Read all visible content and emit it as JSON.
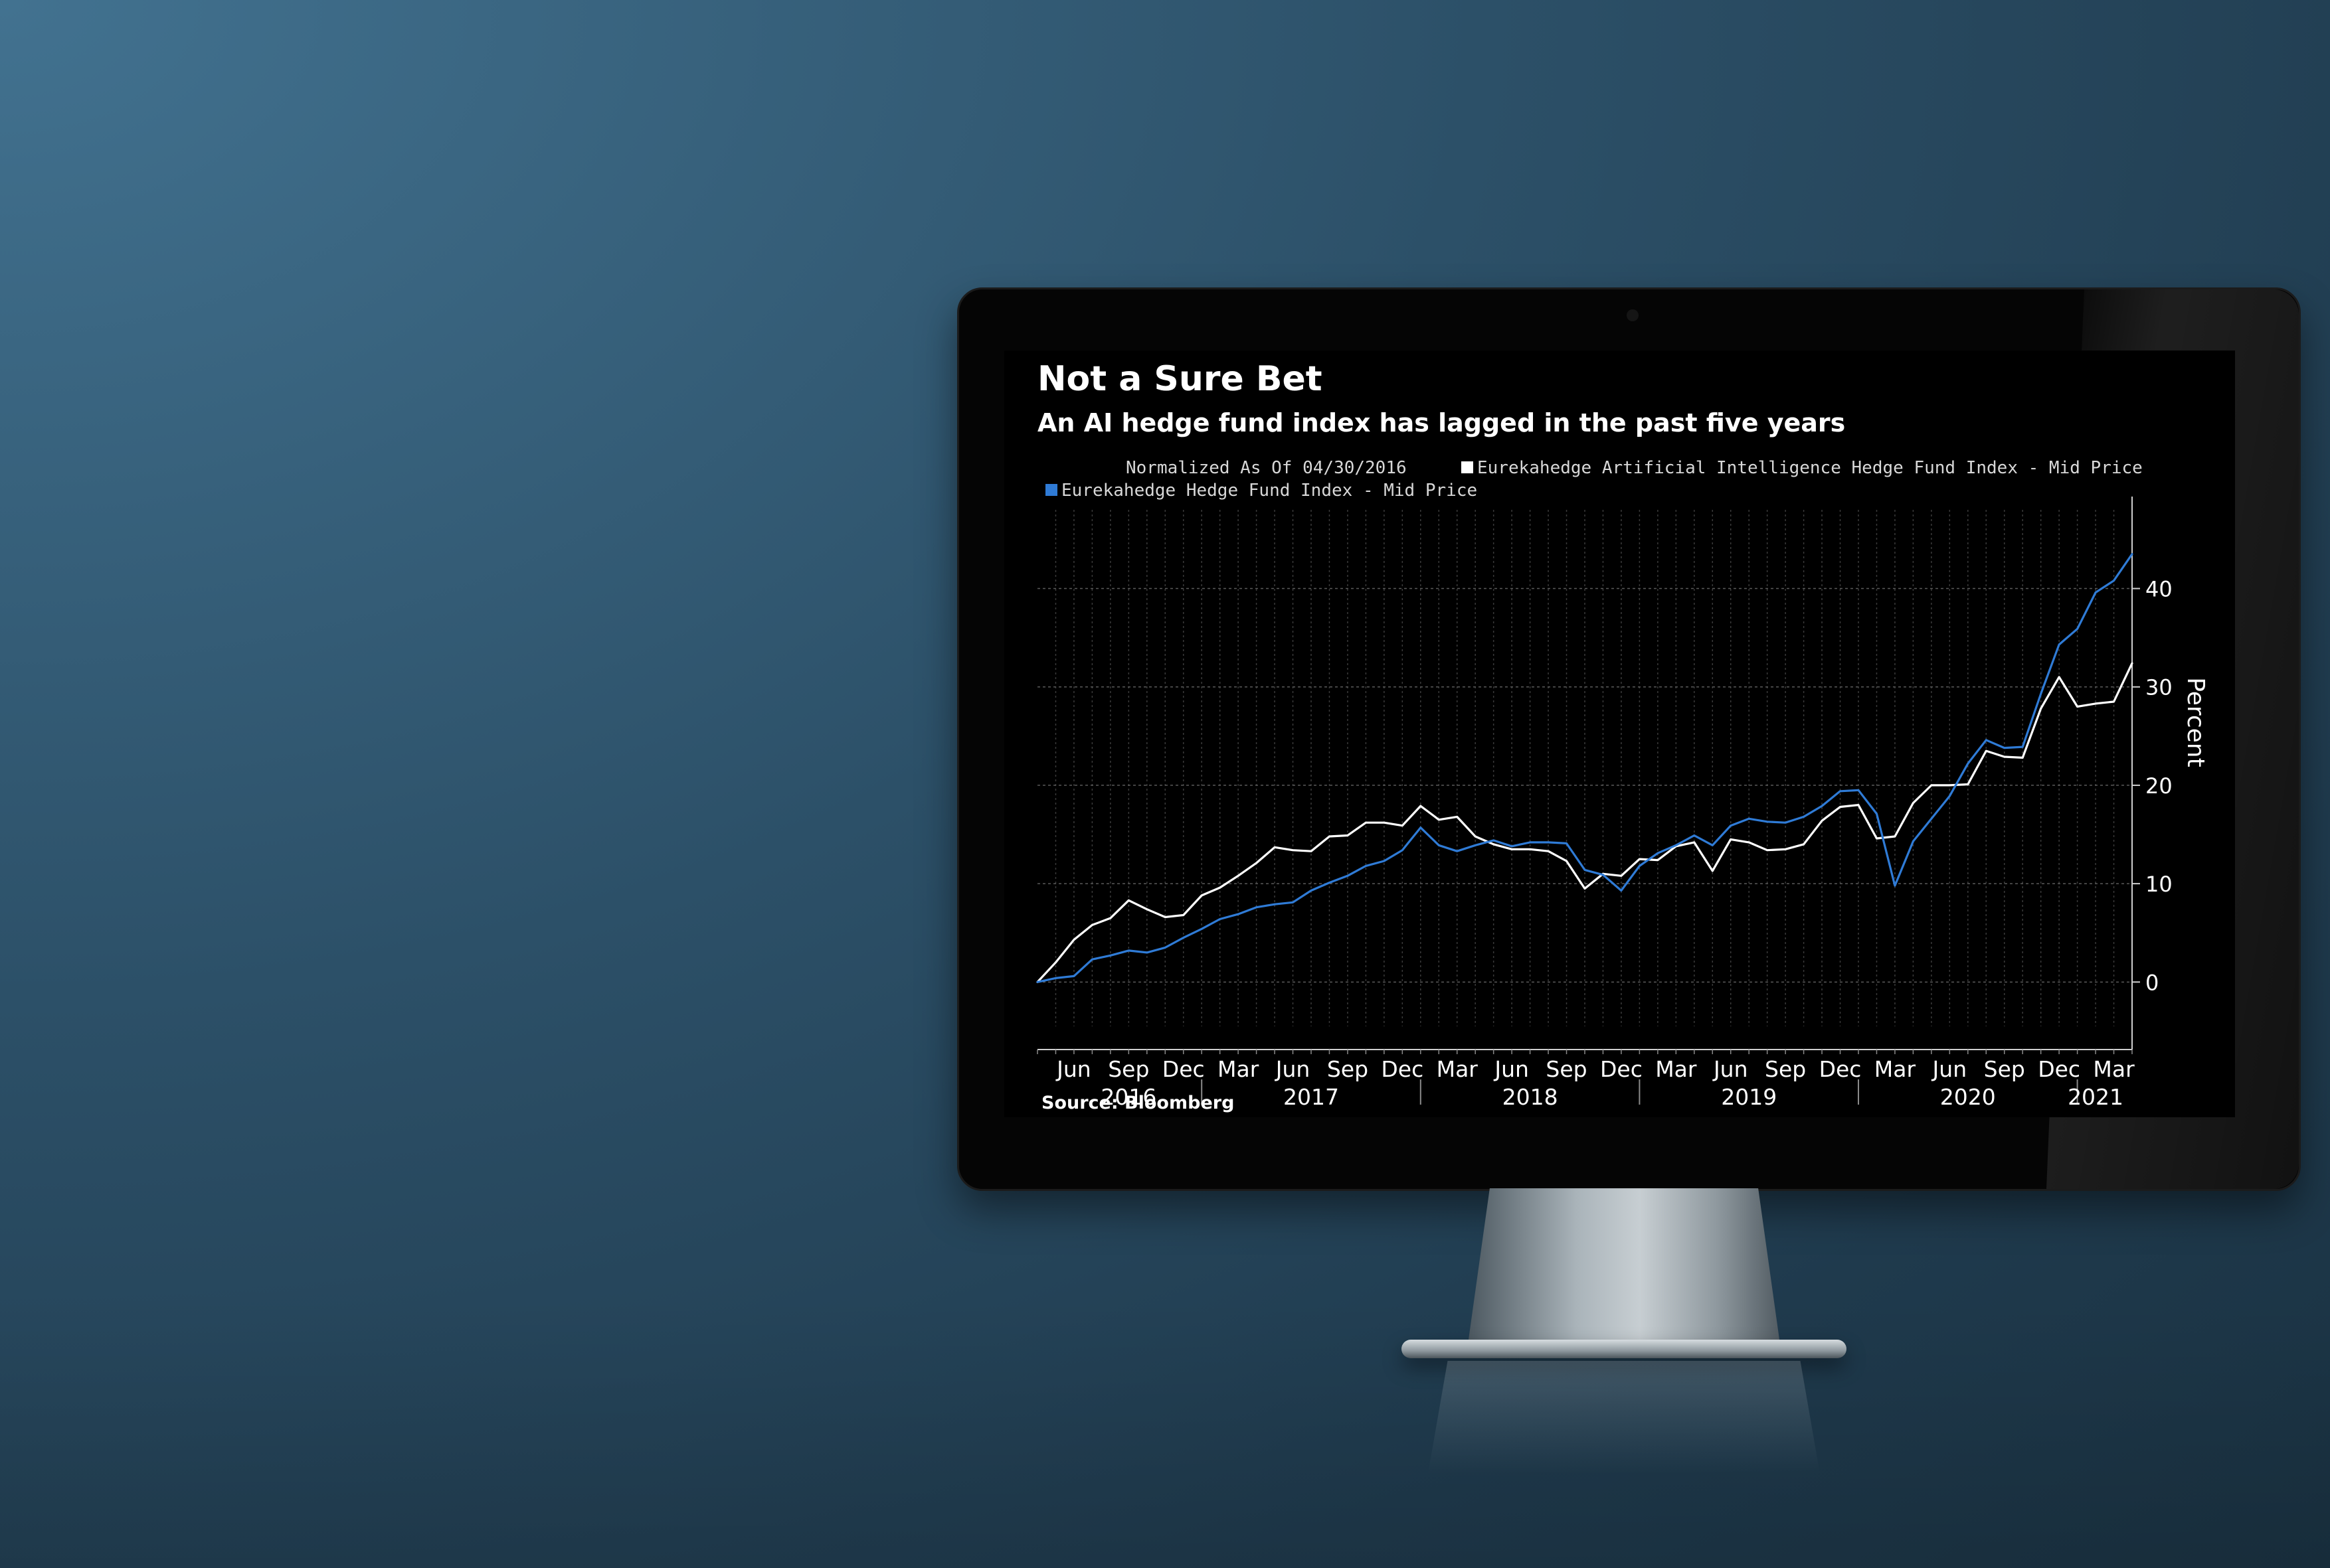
{
  "chart_data": {
    "type": "line",
    "title": "Not a Sure Bet",
    "subtitle": "An AI hedge fund index has lagged in the past five years",
    "note": "Normalized As Of 04/30/2016",
    "source": "Source: Bloomberg",
    "ylabel": "Percent",
    "ylim": [
      -4.5,
      48
    ],
    "yticks": [
      0,
      10,
      20,
      30,
      40
    ],
    "x_start": "2016-04",
    "x_end": "2021-04",
    "x_tick_labels": [
      {
        "month": "Jun",
        "date": "2016-06"
      },
      {
        "month": "Sep",
        "date": "2016-09"
      },
      {
        "month": "Dec",
        "date": "2016-12"
      },
      {
        "month": "Mar",
        "date": "2017-03"
      },
      {
        "month": "Jun",
        "date": "2017-06"
      },
      {
        "month": "Sep",
        "date": "2017-09"
      },
      {
        "month": "Dec",
        "date": "2017-12"
      },
      {
        "month": "Mar",
        "date": "2018-03"
      },
      {
        "month": "Jun",
        "date": "2018-06"
      },
      {
        "month": "Sep",
        "date": "2018-09"
      },
      {
        "month": "Dec",
        "date": "2018-12"
      },
      {
        "month": "Mar",
        "date": "2019-03"
      },
      {
        "month": "Jun",
        "date": "2019-06"
      },
      {
        "month": "Sep",
        "date": "2019-09"
      },
      {
        "month": "Dec",
        "date": "2019-12"
      },
      {
        "month": "Mar",
        "date": "2020-03"
      },
      {
        "month": "Jun",
        "date": "2020-06"
      },
      {
        "month": "Sep",
        "date": "2020-09"
      },
      {
        "month": "Dec",
        "date": "2020-12"
      },
      {
        "month": "Mar",
        "date": "2021-03"
      }
    ],
    "year_labels": [
      {
        "label": "2016",
        "date": "2016-09"
      },
      {
        "label": "2017",
        "date": "2017-07"
      },
      {
        "label": "2018",
        "date": "2018-07"
      },
      {
        "label": "2019",
        "date": "2019-07"
      },
      {
        "label": "2020",
        "date": "2020-07"
      },
      {
        "label": "2021",
        "date": "2021-02"
      }
    ],
    "year_dividers": [
      "2017-01",
      "2018-01",
      "2019-01",
      "2020-01",
      "2021-01"
    ],
    "grid": true,
    "legend_position": "top",
    "series": [
      {
        "name": "Eurekahedge Artificial Intelligence Hedge Fund Index - Mid Price",
        "color": "#ffffff",
        "values": [
          0,
          2,
          4.3,
          5.8,
          6.5,
          8.3,
          7.4,
          6.6,
          6.8,
          8.8,
          9.6,
          10.8,
          12.1,
          13.7,
          13.4,
          13.3,
          14.8,
          14.9,
          16.2,
          16.2,
          15.9,
          17.9,
          16.5,
          16.8,
          14.8,
          14,
          13.5,
          13.5,
          13.3,
          12.3,
          9.5,
          11,
          10.8,
          12.5,
          12.4,
          13.8,
          14.2,
          11.3,
          14.5,
          14.2,
          13.4,
          13.5,
          14,
          16.4,
          17.8,
          18,
          14.6,
          14.8,
          18.2,
          20,
          20,
          20.1,
          23.5,
          22.9,
          22.8,
          27.8,
          31,
          28,
          28.3,
          28.5,
          32.4
        ]
      },
      {
        "name": "Eurekahedge Hedge Fund Index - Mid Price",
        "color": "#2f7bd6",
        "values": [
          0,
          0.4,
          0.6,
          2.3,
          2.7,
          3.2,
          3,
          3.5,
          4.5,
          5.4,
          6.4,
          6.9,
          7.6,
          7.9,
          8.1,
          9.3,
          10.1,
          10.8,
          11.8,
          12.3,
          13.4,
          15.7,
          13.9,
          13.3,
          13.9,
          14.4,
          13.8,
          14.2,
          14.2,
          14.1,
          11.4,
          10.9,
          9.3,
          11.8,
          13.1,
          13.9,
          14.9,
          13.9,
          15.9,
          16.6,
          16.3,
          16.2,
          16.8,
          17.9,
          19.4,
          19.5,
          17.1,
          9.8,
          14.3,
          16.6,
          18.9,
          22.2,
          24.6,
          23.8,
          23.9,
          29.3,
          34.3,
          35.9,
          39.6,
          40.8,
          43.5
        ]
      }
    ]
  }
}
